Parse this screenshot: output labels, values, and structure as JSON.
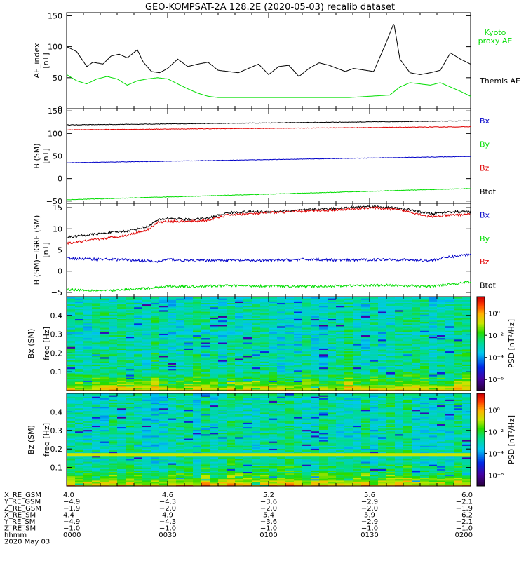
{
  "title": "GEO-KOMPSAT-2A 128.2E (2020-05-03) recalib dataset",
  "colors": {
    "black": "#000000",
    "red": "#e00000",
    "blue": "#0000c8",
    "green": "#00dd00"
  },
  "chart_data": [
    {
      "type": "line",
      "ylabel": "AE_index [nT]",
      "ylim": [
        0,
        155
      ],
      "yticks": [
        "0",
        "50",
        "100",
        "150"
      ],
      "yticks_values": [
        0,
        50,
        100,
        150
      ],
      "x_hours": [
        0.0,
        2.0
      ],
      "legend": [
        {
          "label": "Kyoto proxy AE",
          "color": "#00dd00"
        },
        {
          "label": "Themis AE",
          "color": "#000000"
        }
      ],
      "series": [
        {
          "name": "Themis AE",
          "color": "#000000",
          "x": [
            0,
            0.05,
            0.1,
            0.13,
            0.18,
            0.22,
            0.26,
            0.3,
            0.35,
            0.38,
            0.42,
            0.46,
            0.5,
            0.55,
            0.6,
            0.65,
            0.7,
            0.75,
            0.8,
            0.85,
            0.9,
            0.95,
            1.0,
            1.05,
            1.1,
            1.15,
            1.2,
            1.25,
            1.3,
            1.38,
            1.42,
            1.48,
            1.52,
            1.58,
            1.62,
            1.65,
            1.7,
            1.75,
            1.8,
            1.85,
            1.9,
            1.95,
            2.0
          ],
          "y": [
            100,
            92,
            68,
            75,
            72,
            85,
            88,
            82,
            95,
            75,
            60,
            58,
            65,
            80,
            68,
            72,
            75,
            62,
            60,
            58,
            65,
            72,
            55,
            68,
            70,
            52,
            65,
            74,
            70,
            60,
            65,
            62,
            60,
            105,
            138,
            80,
            58,
            55,
            58,
            62,
            90,
            80,
            72
          ]
        },
        {
          "name": "Kyoto proxy AE",
          "color": "#00dd00",
          "x": [
            0,
            0.05,
            0.1,
            0.15,
            0.2,
            0.25,
            0.3,
            0.35,
            0.4,
            0.45,
            0.5,
            0.55,
            0.6,
            0.65,
            0.7,
            0.75,
            0.8,
            1.0,
            1.2,
            1.4,
            1.6,
            1.65,
            1.7,
            1.75,
            1.8,
            1.85,
            1.9,
            1.95,
            2.0
          ],
          "y": [
            55,
            45,
            40,
            48,
            52,
            48,
            38,
            45,
            48,
            50,
            48,
            40,
            32,
            25,
            20,
            18,
            18,
            18,
            18,
            18,
            22,
            35,
            42,
            40,
            38,
            42,
            35,
            28,
            20
          ]
        }
      ]
    },
    {
      "type": "line",
      "ylabel": "B (SM) [nT]",
      "ylim": [
        -55,
        155
      ],
      "yticks": [
        "−50",
        "0",
        "50",
        "100",
        "150"
      ],
      "yticks_values": [
        -50,
        0,
        50,
        100,
        150
      ],
      "x_hours": [
        0.0,
        2.0
      ],
      "legend": [
        {
          "label": "Bx",
          "color": "#0000c8"
        },
        {
          "label": "By",
          "color": "#00dd00"
        },
        {
          "label": "Bz",
          "color": "#e00000"
        },
        {
          "label": "Btot",
          "color": "#000000"
        }
      ],
      "series": [
        {
          "name": "Btot",
          "color": "#000000",
          "x": [
            0,
            2
          ],
          "y": [
            119,
            128
          ]
        },
        {
          "name": "Bz",
          "color": "#e00000",
          "x": [
            0,
            2
          ],
          "y": [
            108,
            115
          ]
        },
        {
          "name": "Bx",
          "color": "#0000c8",
          "x": [
            0,
            2
          ],
          "y": [
            35,
            49
          ]
        },
        {
          "name": "By",
          "color": "#00dd00",
          "x": [
            0,
            2
          ],
          "y": [
            -47,
            -22
          ]
        }
      ]
    },
    {
      "type": "line",
      "ylabel": "B (SM)−IGRF (SM) [nT]",
      "ylim": [
        -6,
        16
      ],
      "yticks": [
        "−5",
        "0",
        "5",
        "10",
        "15"
      ],
      "yticks_values": [
        -5,
        0,
        5,
        10,
        15
      ],
      "x_hours": [
        0.0,
        2.0
      ],
      "legend": [
        {
          "label": "Bx",
          "color": "#0000c8"
        },
        {
          "label": "By",
          "color": "#00dd00"
        },
        {
          "label": "Bz",
          "color": "#e00000"
        },
        {
          "label": "Btot",
          "color": "#000000"
        }
      ],
      "series": [
        {
          "name": "Btot",
          "color": "#000000",
          "x": [
            0,
            0.15,
            0.3,
            0.4,
            0.45,
            0.5,
            0.6,
            0.7,
            0.8,
            0.9,
            1.0,
            1.2,
            1.4,
            1.5,
            1.6,
            1.7,
            1.8,
            1.9,
            2.0
          ],
          "y": [
            8,
            8.8,
            9.5,
            10.5,
            12,
            12.5,
            12.2,
            12.5,
            13.8,
            14,
            14,
            14.5,
            15,
            15.3,
            15,
            14.5,
            13.5,
            14,
            14
          ]
        },
        {
          "name": "Bz",
          "color": "#e00000",
          "x": [
            0,
            0.15,
            0.3,
            0.4,
            0.45,
            0.5,
            0.6,
            0.7,
            0.8,
            0.9,
            1.0,
            1.2,
            1.4,
            1.5,
            1.6,
            1.7,
            1.8,
            1.9,
            2.0
          ],
          "y": [
            6.5,
            7.5,
            8.5,
            9.8,
            11.5,
            11.8,
            11.7,
            12,
            13.3,
            13.5,
            13.8,
            14.2,
            14.6,
            15,
            14.7,
            14,
            12.8,
            13.2,
            13.5
          ]
        },
        {
          "name": "Bx",
          "color": "#0000c8",
          "x": [
            0,
            0.2,
            0.35,
            0.45,
            0.5,
            0.6,
            0.8,
            1.0,
            1.2,
            1.4,
            1.6,
            1.8,
            1.9,
            2.0
          ],
          "y": [
            3,
            2.8,
            2.6,
            2.2,
            2.8,
            2.5,
            2.6,
            2.5,
            2.8,
            2.6,
            2.8,
            2.5,
            3.4,
            4
          ]
        },
        {
          "name": "By",
          "color": "#00dd00",
          "x": [
            0,
            0.2,
            0.35,
            0.45,
            0.5,
            0.6,
            0.8,
            1.0,
            1.2,
            1.4,
            1.6,
            1.8,
            1.9,
            2.0
          ],
          "y": [
            -4.3,
            -4.6,
            -4.2,
            -3.8,
            -3.5,
            -3.6,
            -3.4,
            -3.5,
            -3.6,
            -3.4,
            -3.3,
            -3.6,
            -3.0,
            -2.6
          ]
        }
      ]
    },
    {
      "type": "heatmap",
      "ylabel": "Bx (SM) freq [Hz]",
      "ylim": [
        0,
        0.5
      ],
      "yticks": [
        "0.1",
        "0.2",
        "0.3",
        "0.4"
      ],
      "yticks_values": [
        0.1,
        0.2,
        0.3,
        0.4
      ],
      "x_hours": [
        0.0,
        2.0
      ],
      "colorbar": {
        "label": "PSD [nT²/Hz]",
        "ticks": [
          "10⁰",
          "10⁻²",
          "10⁻⁴",
          "10⁻⁶"
        ],
        "ticks_values": [
          0,
          -2,
          -4,
          -6
        ],
        "range": [
          -7,
          1.5
        ]
      }
    },
    {
      "type": "heatmap",
      "ylabel": "Bz (SM) freq [Hz]",
      "ylim": [
        0,
        0.5
      ],
      "yticks": [
        "0.1",
        "0.2",
        "0.3",
        "0.4"
      ],
      "yticks_values": [
        0.1,
        0.2,
        0.3,
        0.4
      ],
      "x_hours": [
        0.0,
        2.0
      ],
      "colorbar": {
        "label": "PSD [nT²/Hz]",
        "ticks": [
          "10⁰",
          "10⁻²",
          "10⁻⁴",
          "10⁻⁶"
        ],
        "ticks_values": [
          0,
          -2,
          -4,
          -6
        ],
        "range": [
          -7,
          1.5
        ]
      }
    }
  ],
  "ephemeris": {
    "rows": [
      {
        "label": "X_RE_GSM",
        "values": [
          "4.0",
          "4.6",
          "5.2",
          "5.6",
          "6.0"
        ]
      },
      {
        "label": "Y_RE_GSM",
        "values": [
          "−4.9",
          "−4.3",
          "−3.6",
          "−2.9",
          "−2.1"
        ]
      },
      {
        "label": "Z_RE_GSM",
        "values": [
          "−1.9",
          "−2.0",
          "−2.0",
          "−2.0",
          "−1.9"
        ]
      },
      {
        "label": "X_RE_SM",
        "values": [
          "4.4",
          "4.9",
          "5.4",
          "5.9",
          "6.2"
        ]
      },
      {
        "label": "Y_RE_SM",
        "values": [
          "−4.9",
          "−4.3",
          "−3.6",
          "−2.9",
          "−2.1"
        ]
      },
      {
        "label": "Z_RE_SM",
        "values": [
          "−1.0",
          "−1.0",
          "−1.0",
          "−1.0",
          "−1.0"
        ]
      },
      {
        "label": "hhmm",
        "values": [
          "0000",
          "0030",
          "0100",
          "0130",
          "0200"
        ]
      }
    ],
    "date": "2020 May 03"
  }
}
